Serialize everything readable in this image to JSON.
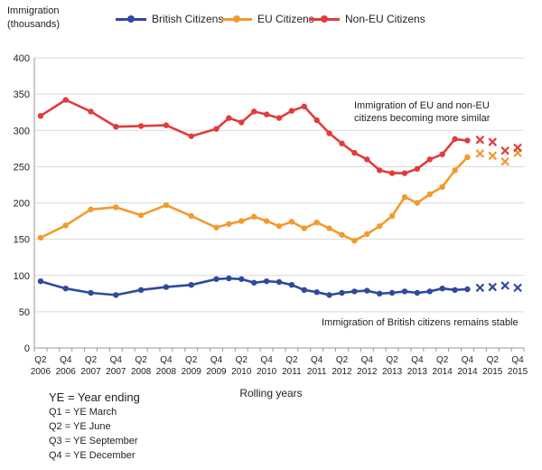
{
  "chart_data": {
    "type": "line",
    "ylabel_lines": [
      "Immigration",
      "(thousands)"
    ],
    "xlabel": "Rolling years",
    "ylim": [
      0,
      400
    ],
    "yticks": [
      0,
      50,
      100,
      150,
      200,
      250,
      300,
      350,
      400
    ],
    "grid": true,
    "legend_position": "top",
    "quarters": [
      "Q2 2006",
      "Q3 2006",
      "Q4 2006",
      "Q1 2007",
      "Q2 2007",
      "Q3 2007",
      "Q4 2007",
      "Q1 2008",
      "Q2 2008",
      "Q3 2008",
      "Q4 2008",
      "Q1 2009",
      "Q2 2009",
      "Q3 2009",
      "Q4 2009",
      "Q1 2010",
      "Q2 2010",
      "Q3 2010",
      "Q4 2010",
      "Q1 2011",
      "Q2 2011",
      "Q3 2011",
      "Q4 2011",
      "Q1 2012",
      "Q2 2012",
      "Q3 2012",
      "Q4 2012",
      "Q1 2013",
      "Q2 2013",
      "Q3 2013",
      "Q4 2013",
      "Q1 2014",
      "Q2 2014",
      "Q3 2014",
      "Q4 2014",
      "Q1 2015",
      "Q2 2015",
      "Q3 2015",
      "Q4 2015"
    ],
    "tick_labels": [
      {
        "q": "Q2",
        "year": "2006"
      },
      {
        "q": "Q4",
        "year": "2006"
      },
      {
        "q": "Q2",
        "year": "2007"
      },
      {
        "q": "Q4",
        "year": "2007"
      },
      {
        "q": "Q2",
        "year": "2008"
      },
      {
        "q": "Q4",
        "year": "2008"
      },
      {
        "q": "Q2",
        "year": "2009"
      },
      {
        "q": "Q4",
        "year": "2009"
      },
      {
        "q": "Q2",
        "year": "2010"
      },
      {
        "q": "Q4",
        "year": "2010"
      },
      {
        "q": "Q2",
        "year": "2011"
      },
      {
        "q": "Q4",
        "year": "2011"
      },
      {
        "q": "Q2",
        "year": "2012"
      },
      {
        "q": "Q4",
        "year": "2012"
      },
      {
        "q": "Q2",
        "year": "2013"
      },
      {
        "q": "Q4",
        "year": "2013"
      },
      {
        "q": "Q2",
        "year": "2014"
      },
      {
        "q": "Q4",
        "year": "2014"
      },
      {
        "q": "Q2",
        "year": "2015"
      },
      {
        "q": "Q4",
        "year": "2015"
      }
    ],
    "series": [
      {
        "name": "British Citizens",
        "color": "#2E4A9E",
        "points": [
          {
            "x": "Q2 2006",
            "y": 92
          },
          {
            "x": "Q4 2006",
            "y": 82
          },
          {
            "x": "Q2 2007",
            "y": 76
          },
          {
            "x": "Q4 2007",
            "y": 73
          },
          {
            "x": "Q2 2008",
            "y": 80
          },
          {
            "x": "Q4 2008",
            "y": 84
          },
          {
            "x": "Q2 2009",
            "y": 87
          },
          {
            "x": "Q4 2009",
            "y": 95
          },
          {
            "x": "Q1 2010",
            "y": 96
          },
          {
            "x": "Q2 2010",
            "y": 95
          },
          {
            "x": "Q3 2010",
            "y": 90
          },
          {
            "x": "Q4 2010",
            "y": 92
          },
          {
            "x": "Q1 2011",
            "y": 91
          },
          {
            "x": "Q2 2011",
            "y": 87
          },
          {
            "x": "Q3 2011",
            "y": 80
          },
          {
            "x": "Q4 2011",
            "y": 77
          },
          {
            "x": "Q1 2012",
            "y": 73
          },
          {
            "x": "Q2 2012",
            "y": 76
          },
          {
            "x": "Q3 2012",
            "y": 78
          },
          {
            "x": "Q4 2012",
            "y": 79
          },
          {
            "x": "Q1 2013",
            "y": 75
          },
          {
            "x": "Q2 2013",
            "y": 76
          },
          {
            "x": "Q3 2013",
            "y": 78
          },
          {
            "x": "Q4 2013",
            "y": 76
          },
          {
            "x": "Q1 2014",
            "y": 78
          },
          {
            "x": "Q2 2014",
            "y": 82
          },
          {
            "x": "Q3 2014",
            "y": 80
          },
          {
            "x": "Q4 2014",
            "y": 81
          }
        ],
        "markers_x": [
          {
            "x": "Q1 2015",
            "y": 83
          },
          {
            "x": "Q2 2015",
            "y": 84
          },
          {
            "x": "Q3 2015",
            "y": 86
          },
          {
            "x": "Q4 2015",
            "y": 83
          }
        ]
      },
      {
        "name": "EU Citizens",
        "color": "#F39A2E",
        "points": [
          {
            "x": "Q2 2006",
            "y": 152
          },
          {
            "x": "Q4 2006",
            "y": 169
          },
          {
            "x": "Q2 2007",
            "y": 191
          },
          {
            "x": "Q4 2007",
            "y": 194
          },
          {
            "x": "Q2 2008",
            "y": 183
          },
          {
            "x": "Q4 2008",
            "y": 197
          },
          {
            "x": "Q2 2009",
            "y": 182
          },
          {
            "x": "Q4 2009",
            "y": 166
          },
          {
            "x": "Q1 2010",
            "y": 171
          },
          {
            "x": "Q2 2010",
            "y": 175
          },
          {
            "x": "Q3 2010",
            "y": 181
          },
          {
            "x": "Q4 2010",
            "y": 175
          },
          {
            "x": "Q1 2011",
            "y": 168
          },
          {
            "x": "Q2 2011",
            "y": 174
          },
          {
            "x": "Q3 2011",
            "y": 165
          },
          {
            "x": "Q4 2011",
            "y": 173
          },
          {
            "x": "Q1 2012",
            "y": 165
          },
          {
            "x": "Q2 2012",
            "y": 156
          },
          {
            "x": "Q3 2012",
            "y": 148
          },
          {
            "x": "Q4 2012",
            "y": 157
          },
          {
            "x": "Q1 2013",
            "y": 168
          },
          {
            "x": "Q2 2013",
            "y": 182
          },
          {
            "x": "Q3 2013",
            "y": 208
          },
          {
            "x": "Q4 2013",
            "y": 200
          },
          {
            "x": "Q1 2014",
            "y": 212
          },
          {
            "x": "Q2 2014",
            "y": 222
          },
          {
            "x": "Q3 2014",
            "y": 245
          },
          {
            "x": "Q4 2014",
            "y": 263
          }
        ],
        "markers_x": [
          {
            "x": "Q1 2015",
            "y": 268
          },
          {
            "x": "Q2 2015",
            "y": 265
          },
          {
            "x": "Q3 2015",
            "y": 257
          },
          {
            "x": "Q4 2015",
            "y": 269
          }
        ]
      },
      {
        "name": "Non-EU Citizens",
        "color": "#E03C3C",
        "points": [
          {
            "x": "Q2 2006",
            "y": 320
          },
          {
            "x": "Q4 2006",
            "y": 342
          },
          {
            "x": "Q2 2007",
            "y": 326
          },
          {
            "x": "Q4 2007",
            "y": 305
          },
          {
            "x": "Q2 2008",
            "y": 306
          },
          {
            "x": "Q4 2008",
            "y": 307
          },
          {
            "x": "Q2 2009",
            "y": 292
          },
          {
            "x": "Q4 2009",
            "y": 302
          },
          {
            "x": "Q1 2010",
            "y": 317
          },
          {
            "x": "Q2 2010",
            "y": 311
          },
          {
            "x": "Q3 2010",
            "y": 326
          },
          {
            "x": "Q4 2010",
            "y": 322
          },
          {
            "x": "Q1 2011",
            "y": 317
          },
          {
            "x": "Q2 2011",
            "y": 327
          },
          {
            "x": "Q3 2011",
            "y": 333
          },
          {
            "x": "Q4 2011",
            "y": 314
          },
          {
            "x": "Q1 2012",
            "y": 296
          },
          {
            "x": "Q2 2012",
            "y": 282
          },
          {
            "x": "Q3 2012",
            "y": 269
          },
          {
            "x": "Q4 2012",
            "y": 260
          },
          {
            "x": "Q1 2013",
            "y": 245
          },
          {
            "x": "Q2 2013",
            "y": 241
          },
          {
            "x": "Q3 2013",
            "y": 241
          },
          {
            "x": "Q4 2013",
            "y": 247
          },
          {
            "x": "Q1 2014",
            "y": 260
          },
          {
            "x": "Q2 2014",
            "y": 267
          },
          {
            "x": "Q3 2014",
            "y": 288
          },
          {
            "x": "Q4 2014",
            "y": 286
          }
        ],
        "markers_x": [
          {
            "x": "Q1 2015",
            "y": 287
          },
          {
            "x": "Q2 2015",
            "y": 284
          },
          {
            "x": "Q3 2015",
            "y": 272
          },
          {
            "x": "Q4 2015",
            "y": 276
          }
        ]
      }
    ],
    "annotations": [
      {
        "lines": [
          "Immigration of EU and non-EU",
          "citizens becoming more similar"
        ]
      },
      {
        "lines": [
          "Immigration of British citizens remains stable"
        ]
      }
    ],
    "notes": {
      "head": "YE = Year ending",
      "items": [
        "Q1 = YE March",
        "Q2 = YE June",
        "Q3 = YE September",
        "Q4 = YE December"
      ]
    }
  }
}
